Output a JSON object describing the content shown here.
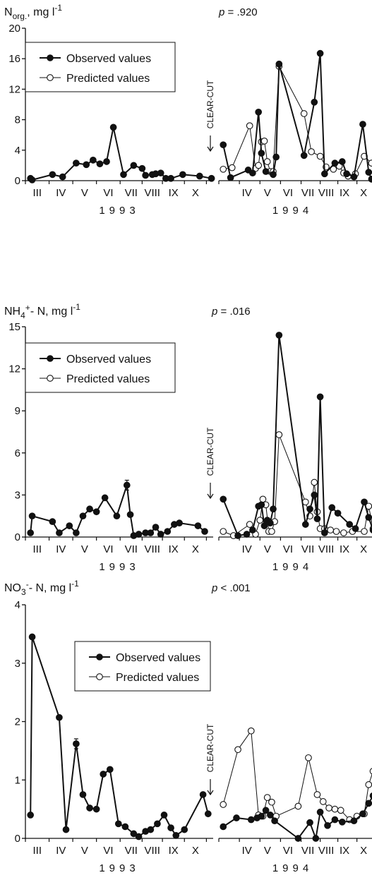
{
  "chart_data": [
    {
      "type": "line",
      "ylabel": "N",
      "ylabel_sub": "org.",
      "ylabel_unit": ", mg l",
      "ylabel_sup": "-1",
      "p_prefix": "p",
      "p_value": " = .920",
      "ylim": [
        0,
        20
      ],
      "yticks": [
        "0",
        "4",
        "8",
        "12",
        "16",
        "20"
      ],
      "legend": {
        "observed": "Observed values",
        "predicted": "Predicted values"
      },
      "annotation": "CLEAR-CUT",
      "year_left": "1993",
      "year_right": "1994",
      "months_left": [
        "III",
        "IV",
        "V",
        "VI",
        "VII",
        "VIII",
        "IX",
        "X"
      ],
      "months_right": [
        "IV",
        "V",
        "VI",
        "VII",
        "VIII",
        "IX",
        "X"
      ],
      "series": [
        {
          "name": "Observed values",
          "segment": "1993",
          "x": [
            3.65,
            3.7,
            4.3,
            4.6,
            5.0,
            5.3,
            5.5,
            5.7,
            5.9,
            6.1,
            6.4,
            6.7,
            6.95,
            7.05,
            7.25,
            7.35,
            7.5,
            7.65,
            7.8,
            8.15,
            8.65,
            9.0
          ],
          "y": [
            0.3,
            0.1,
            0.8,
            0.5,
            2.3,
            2.1,
            2.7,
            2.2,
            2.5,
            7.0,
            0.8,
            2.0,
            1.6,
            0.7,
            0.8,
            0.9,
            1.0,
            0.3,
            0.3,
            0.8,
            0.6,
            0.3
          ]
        },
        {
          "name": "Observed values",
          "segment": "1994",
          "x": [
            3.65,
            3.9,
            4.5,
            4.65,
            4.85,
            4.95,
            5.1,
            5.35,
            5.45,
            5.55,
            6.4,
            6.75,
            6.95,
            7.1,
            7.45,
            7.7,
            7.85,
            8.1,
            8.4,
            8.6,
            8.7
          ],
          "y": [
            4.7,
            0.4,
            1.4,
            1.0,
            9.0,
            3.6,
            1.2,
            0.8,
            3.1,
            15.3,
            3.3,
            10.3,
            16.7,
            0.9,
            2.3,
            2.5,
            0.9,
            0.5,
            7.4,
            1.1,
            0.2
          ]
        },
        {
          "name": "Predicted values",
          "segment": "1994",
          "x": [
            3.65,
            3.95,
            4.55,
            4.75,
            4.85,
            4.95,
            5.05,
            5.15,
            5.25,
            5.35,
            5.55,
            6.4,
            6.65,
            6.95,
            7.15,
            7.4,
            7.6,
            7.75,
            7.9,
            8.15,
            8.45,
            8.7
          ],
          "y": [
            1.5,
            1.7,
            7.2,
            1.6,
            2.0,
            5.1,
            5.2,
            2.5,
            1.2,
            1.2,
            15.0,
            8.8,
            3.8,
            3.2,
            1.8,
            1.5,
            1.9,
            1.0,
            0.6,
            0.9,
            3.2,
            2.3
          ]
        }
      ]
    },
    {
      "type": "line",
      "ylabel": "NH",
      "ylabel_sub": "4",
      "ylabel_sup2": "+",
      "ylabel_unit": "- N,  mg l",
      "ylabel_sup": "-1",
      "p_prefix": "p",
      "p_value": " = .016",
      "ylim": [
        0,
        15
      ],
      "yticks": [
        "0",
        "3",
        "6",
        "9",
        "12",
        "15"
      ],
      "legend": {
        "observed": "Observed values",
        "predicted": "Predicted values"
      },
      "annotation": "CLEAR-CUT",
      "year_left": "1993",
      "year_right": "1994",
      "months_left": [
        "III",
        "IV",
        "V",
        "VI",
        "VII",
        "VIII",
        "IX",
        "X"
      ],
      "months_right": [
        "IV",
        "V",
        "VI",
        "VII",
        "VIII",
        "IX",
        "X"
      ],
      "series": [
        {
          "name": "Observed values",
          "segment": "1993",
          "x": [
            3.65,
            3.7,
            4.3,
            4.5,
            4.8,
            5.0,
            5.2,
            5.4,
            5.6,
            5.85,
            6.2,
            6.5,
            6.6,
            6.7,
            6.85,
            7.05,
            7.2,
            7.35,
            7.5,
            7.7,
            7.9,
            8.05,
            8.6,
            8.8
          ],
          "y": [
            0.3,
            1.5,
            1.1,
            0.3,
            0.8,
            0.3,
            1.5,
            2.0,
            1.8,
            2.8,
            1.5,
            3.7,
            1.6,
            0.1,
            0.2,
            0.3,
            0.3,
            0.7,
            0.2,
            0.4,
            0.9,
            1.0,
            0.8,
            0.4
          ],
          "error_index": 11
        },
        {
          "name": "Observed values",
          "segment": "1994",
          "x": [
            3.65,
            4.15,
            4.45,
            4.65,
            4.85,
            4.95,
            5.05,
            5.15,
            5.25,
            5.35,
            5.55,
            6.45,
            6.6,
            6.75,
            6.85,
            6.95,
            7.1,
            7.35,
            7.55,
            7.95,
            8.15,
            8.45,
            8.6,
            8.75
          ],
          "y": [
            2.7,
            0.1,
            0.2,
            0.5,
            2.2,
            2.3,
            0.8,
            1.2,
            1.0,
            2.0,
            14.4,
            0.9,
            2.0,
            3.0,
            1.3,
            10.0,
            0.3,
            2.1,
            1.7,
            0.9,
            0.6,
            2.5,
            1.4,
            0.5
          ]
        },
        {
          "name": "Predicted values",
          "segment": "1994",
          "x": [
            3.65,
            4.0,
            4.55,
            4.75,
            4.9,
            5.0,
            5.1,
            5.2,
            5.3,
            5.4,
            5.55,
            6.45,
            6.6,
            6.75,
            6.85,
            6.95,
            7.1,
            7.3,
            7.5,
            7.75,
            8.05,
            8.45,
            8.6,
            8.75
          ],
          "y": [
            0.4,
            0.1,
            0.9,
            0.2,
            1.2,
            2.7,
            2.3,
            0.4,
            0.4,
            1.1,
            7.3,
            2.5,
            1.5,
            3.9,
            1.8,
            0.6,
            0.6,
            0.5,
            0.4,
            0.3,
            0.4,
            0.4,
            2.2,
            0.6
          ]
        }
      ]
    },
    {
      "type": "line",
      "ylabel": "NO",
      "ylabel_sub": "3",
      "ylabel_sup2": "-",
      "ylabel_unit": "- N,  mg l",
      "ylabel_sup": "-1",
      "p_prefix": "p",
      "p_value": " < .001",
      "ylim": [
        0,
        4
      ],
      "yticks": [
        "0",
        "1",
        "2",
        "3",
        "4"
      ],
      "legend": {
        "observed": "Observed values",
        "predicted": "Predicted values"
      },
      "annotation": "CLEAR-CUT",
      "year_left": "1993",
      "year_right": "1994",
      "months_left": [
        "III",
        "IV",
        "V",
        "VI",
        "VII",
        "VIII",
        "IX",
        "X"
      ],
      "months_right": [
        "IV",
        "V",
        "VI",
        "VII",
        "VIII",
        "IX",
        "X"
      ],
      "series": [
        {
          "name": "Observed values",
          "segment": "1993",
          "x": [
            3.65,
            3.7,
            4.5,
            4.7,
            5.0,
            5.2,
            5.4,
            5.6,
            5.8,
            6.0,
            6.25,
            6.45,
            6.7,
            6.85,
            7.05,
            7.2,
            7.4,
            7.6,
            7.8,
            7.95,
            8.2,
            8.75,
            8.9
          ],
          "y": [
            0.4,
            3.45,
            2.07,
            0.15,
            1.62,
            0.75,
            0.52,
            0.5,
            1.1,
            1.18,
            0.25,
            0.2,
            0.08,
            0.03,
            0.12,
            0.15,
            0.25,
            0.4,
            0.18,
            0.05,
            0.15,
            0.75,
            0.42
          ],
          "error_index": 4
        },
        {
          "name": "Observed values",
          "segment": "1994",
          "x": [
            3.65,
            4.1,
            4.6,
            4.8,
            4.95,
            5.1,
            5.25,
            5.4,
            6.2,
            6.6,
            6.8,
            6.95,
            7.2,
            7.45,
            7.7,
            8.1,
            8.4,
            8.6,
            8.75
          ],
          "y": [
            0.2,
            0.35,
            0.32,
            0.35,
            0.38,
            0.48,
            0.4,
            0.3,
            0.0,
            0.27,
            0.0,
            0.45,
            0.22,
            0.32,
            0.28,
            0.3,
            0.42,
            0.6,
            0.73
          ]
        },
        {
          "name": "Predicted values",
          "segment": "1994",
          "x": [
            3.65,
            4.15,
            4.6,
            4.85,
            5.0,
            5.15,
            5.3,
            5.45,
            6.2,
            6.55,
            6.85,
            7.05,
            7.25,
            7.45,
            7.65,
            7.95,
            8.2,
            8.45,
            8.6,
            8.75
          ],
          "y": [
            0.58,
            1.52,
            1.84,
            0.4,
            0.38,
            0.7,
            0.62,
            0.38,
            0.55,
            1.38,
            0.75,
            0.63,
            0.52,
            0.5,
            0.48,
            0.32,
            0.38,
            0.42,
            0.92,
            1.15
          ]
        }
      ]
    }
  ]
}
